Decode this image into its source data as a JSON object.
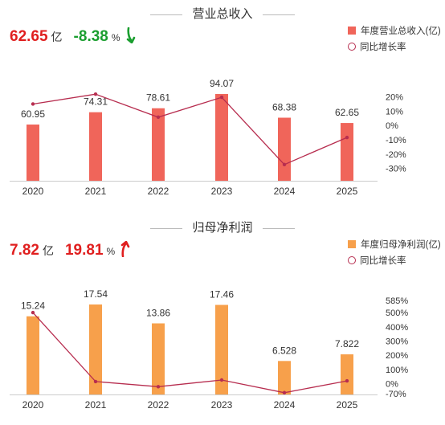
{
  "chart_data": [
    {
      "type": "bar",
      "title": "营业总收入",
      "headline": {
        "value": "62.65",
        "unit": "亿",
        "change": "-8.38",
        "change_unit": "%",
        "direction": "down"
      },
      "categories": [
        "2020",
        "2021",
        "2022",
        "2023",
        "2024",
        "2025"
      ],
      "series": [
        {
          "name": "年度营业总收入(亿)",
          "values": [
            60.95,
            74.31,
            78.61,
            94.07,
            68.38,
            62.65
          ],
          "labels": [
            "60.95",
            "74.31",
            "78.61",
            "94.07",
            "68.38",
            "62.65"
          ],
          "color": "#f0655a"
        },
        {
          "name": "同比增长率",
          "type": "line",
          "axis": "right",
          "values": [
            15,
            21.9,
            5.8,
            19.7,
            -27.3,
            -8.38
          ],
          "color": "#b72d4f"
        }
      ],
      "y2_ticks": [
        "20%",
        "10%",
        "0%",
        "-10%",
        "-20%",
        "-30%"
      ],
      "y2_tick_values": [
        20,
        10,
        0,
        -10,
        -20,
        -30
      ],
      "y2lim": [
        -33,
        22
      ]
    },
    {
      "type": "bar",
      "title": "归母净利润",
      "headline": {
        "value": "7.82",
        "unit": "亿",
        "change": "19.81",
        "change_unit": "%",
        "direction": "up"
      },
      "categories": [
        "2020",
        "2021",
        "2022",
        "2023",
        "2024",
        "2025"
      ],
      "series": [
        {
          "name": "年度归母净利润(亿)",
          "values": [
            15.24,
            17.54,
            13.86,
            17.46,
            6.528,
            7.822
          ],
          "labels": [
            "15.24",
            "17.54",
            "13.86",
            "17.46",
            "6.528",
            "7.822"
          ],
          "color": "#f7a04b"
        },
        {
          "name": "同比增长率",
          "type": "line",
          "axis": "right",
          "values": [
            500,
            15,
            -21,
            26,
            -63,
            19.81
          ],
          "color": "#b72d4f"
        }
      ],
      "y2_ticks": [
        "585%",
        "500%",
        "400%",
        "300%",
        "200%",
        "100%",
        "0%",
        "-70%"
      ],
      "y2_tick_values": [
        585,
        500,
        400,
        300,
        200,
        100,
        0,
        -70
      ],
      "y2lim": [
        -70,
        585
      ]
    }
  ],
  "colors": {
    "up": "#e01f1f",
    "down": "#1a9e2f",
    "line": "#b72d4f",
    "bar1": "#f0655a",
    "bar2": "#f7a04b"
  }
}
